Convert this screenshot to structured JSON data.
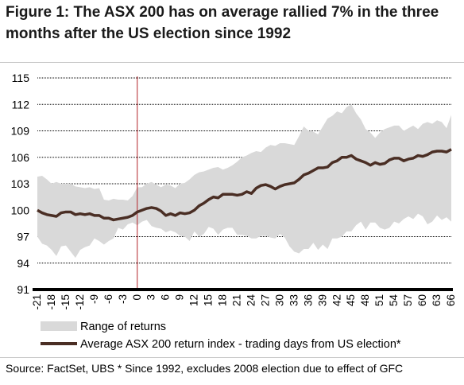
{
  "title": "Figure 1: The ASX 200 has on average rallied 7% in the three months after the US election since 1992",
  "source": "Source: FactSet, UBS * Since 1992, excludes 2008 election due to effect of GFC",
  "colors": {
    "range": "#d9d9d9",
    "line": "#4a2e24",
    "marker": "#b3242a",
    "axis": "#000000",
    "grid": "#000000"
  },
  "chart_data": {
    "type": "line",
    "title": "Figure 1: The ASX 200 has on average rallied 7% in the three months after the US election since 1992",
    "xlabel": "",
    "ylabel": "",
    "xlim": [
      -21,
      66
    ],
    "ylim": [
      91,
      115
    ],
    "yticks": [
      91,
      94,
      97,
      100,
      103,
      106,
      109,
      112,
      115
    ],
    "xticks": [
      -21,
      -18,
      -15,
      -12,
      -9,
      -6,
      -3,
      0,
      3,
      6,
      9,
      12,
      15,
      18,
      21,
      24,
      27,
      30,
      33,
      36,
      39,
      42,
      45,
      48,
      51,
      54,
      57,
      60,
      63,
      66
    ],
    "event_marker_x": 0,
    "legend": {
      "placement": "bottom",
      "range_label": "Range of returns",
      "line_label": "Average ASX 200 return index - trading days from US election*"
    },
    "x": [
      -21,
      -20,
      -19,
      -18,
      -17,
      -16,
      -15,
      -14,
      -13,
      -12,
      -11,
      -10,
      -9,
      -8,
      -7,
      -6,
      -5,
      -4,
      -3,
      -2,
      -1,
      0,
      1,
      2,
      3,
      4,
      5,
      6,
      7,
      8,
      9,
      10,
      11,
      12,
      13,
      14,
      15,
      16,
      17,
      18,
      19,
      20,
      21,
      22,
      23,
      24,
      25,
      26,
      27,
      28,
      29,
      30,
      31,
      32,
      33,
      34,
      35,
      36,
      37,
      38,
      39,
      40,
      41,
      42,
      43,
      44,
      45,
      46,
      47,
      48,
      49,
      50,
      51,
      52,
      53,
      54,
      55,
      56,
      57,
      58,
      59,
      60,
      61,
      62,
      63,
      64,
      65,
      66
    ],
    "series": [
      {
        "name": "Average ASX 200 return index - trading days from US election*",
        "values": [
          100.0,
          99.7,
          99.5,
          99.4,
          99.3,
          99.7,
          99.8,
          99.8,
          99.5,
          99.6,
          99.5,
          99.6,
          99.4,
          99.4,
          99.1,
          99.1,
          98.9,
          99.0,
          99.1,
          99.2,
          99.4,
          99.8,
          100.0,
          100.2,
          100.3,
          100.2,
          99.9,
          99.4,
          99.6,
          99.4,
          99.7,
          99.6,
          99.7,
          100.0,
          100.5,
          100.8,
          101.2,
          101.5,
          101.4,
          101.8,
          101.8,
          101.8,
          101.7,
          101.8,
          102.1,
          101.9,
          102.5,
          102.8,
          102.9,
          102.7,
          102.4,
          102.7,
          102.9,
          103.0,
          103.1,
          103.5,
          104.0,
          104.2,
          104.5,
          104.8,
          104.8,
          104.9,
          105.4,
          105.6,
          106.0,
          106.0,
          106.2,
          105.8,
          105.6,
          105.4,
          105.1,
          105.4,
          105.2,
          105.3,
          105.7,
          105.9,
          105.9,
          105.6,
          105.8,
          105.9,
          106.2,
          106.1,
          106.3,
          106.6,
          106.7,
          106.7,
          106.6,
          106.9
        ]
      },
      {
        "name": "Range of returns (high)",
        "values": [
          103.8,
          103.9,
          103.5,
          103.0,
          103.2,
          103.0,
          103.0,
          103.0,
          102.7,
          102.6,
          102.5,
          102.6,
          102.4,
          102.5,
          101.2,
          101.1,
          101.3,
          101.2,
          101.2,
          101.1,
          101.6,
          102.6,
          102.6,
          103.0,
          103.2,
          102.9,
          102.6,
          102.9,
          102.8,
          102.5,
          103.0,
          103.1,
          103.5,
          104.0,
          104.3,
          104.4,
          104.6,
          104.8,
          104.9,
          104.6,
          104.8,
          105.1,
          105.5,
          106.0,
          106.2,
          106.5,
          106.7,
          106.6,
          107.1,
          107.4,
          107.3,
          107.6,
          107.6,
          107.5,
          107.4,
          108.4,
          109.5,
          109.0,
          108.9,
          108.6,
          109.5,
          110.4,
          110.7,
          111.2,
          111.0,
          111.7,
          112.0,
          111.0,
          110.3,
          109.2,
          108.8,
          108.2,
          108.8,
          109.2,
          109.4,
          109.6,
          109.6,
          109.0,
          109.3,
          109.6,
          109.2,
          109.8,
          110.0,
          109.8,
          110.2,
          110.0,
          109.3,
          110.8
        ]
      },
      {
        "name": "Range of returns (low)",
        "values": [
          97.0,
          96.2,
          96.0,
          95.5,
          94.8,
          95.9,
          96.0,
          95.3,
          94.6,
          95.5,
          95.8,
          96.0,
          96.8,
          96.5,
          96.1,
          96.5,
          96.8,
          98.0,
          97.8,
          98.4,
          98.6,
          98.3,
          98.7,
          98.9,
          98.2,
          98.0,
          97.9,
          97.5,
          97.7,
          97.5,
          97.1,
          97.0,
          96.5,
          97.6,
          97.0,
          97.3,
          98.1,
          97.9,
          97.2,
          97.8,
          98.0,
          98.0,
          97.2,
          97.2,
          97.1,
          96.8,
          96.8,
          97.1,
          97.1,
          96.9,
          96.8,
          97.3,
          96.9,
          95.9,
          95.3,
          95.1,
          95.6,
          95.6,
          96.3,
          95.5,
          96.1,
          95.6,
          96.8,
          96.8,
          97.0,
          97.6,
          97.6,
          98.3,
          98.7,
          97.8,
          98.6,
          98.6,
          98.0,
          97.8,
          98.0,
          98.7,
          98.5,
          99.0,
          99.3,
          99.0,
          99.6,
          99.3,
          98.4,
          98.7,
          99.4,
          98.9,
          99.2,
          98.7
        ]
      }
    ]
  }
}
